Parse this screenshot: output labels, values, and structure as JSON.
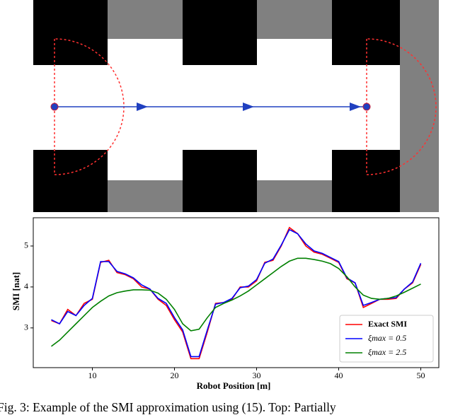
{
  "chart_data": {
    "type": "line",
    "xlabel": "Robot Position [m]",
    "ylabel": "SMI [nat]",
    "x": [
      5,
      6,
      7,
      8,
      9,
      10,
      11,
      12,
      13,
      14,
      15,
      16,
      17,
      18,
      19,
      20,
      21,
      22,
      23,
      24,
      25,
      26,
      27,
      28,
      29,
      30,
      31,
      32,
      33,
      34,
      35,
      36,
      37,
      38,
      39,
      40,
      41,
      42,
      43,
      44,
      45,
      46,
      47,
      48,
      49,
      50
    ],
    "series": [
      {
        "name": "Exact SMI",
        "color": "#ff0000",
        "values": [
          3.18,
          3.1,
          3.45,
          3.3,
          3.6,
          3.7,
          4.6,
          4.65,
          4.35,
          4.3,
          4.2,
          4.0,
          3.95,
          3.7,
          3.55,
          3.2,
          2.9,
          2.25,
          2.25,
          2.9,
          3.6,
          3.62,
          3.7,
          4.0,
          4.0,
          4.15,
          4.6,
          4.65,
          5.0,
          5.45,
          5.3,
          5.0,
          4.85,
          4.8,
          4.7,
          4.6,
          4.2,
          4.1,
          3.5,
          3.6,
          3.7,
          3.7,
          3.72,
          3.95,
          4.1,
          4.55
        ]
      },
      {
        "name": "ξmax = 0.5",
        "color": "#0000ff",
        "values": [
          3.2,
          3.1,
          3.4,
          3.3,
          3.55,
          3.72,
          4.62,
          4.62,
          4.38,
          4.32,
          4.22,
          4.05,
          3.95,
          3.72,
          3.6,
          3.25,
          2.95,
          2.3,
          2.3,
          2.95,
          3.58,
          3.62,
          3.72,
          3.98,
          4.02,
          4.18,
          4.58,
          4.68,
          5.02,
          5.4,
          5.3,
          5.05,
          4.88,
          4.82,
          4.72,
          4.62,
          4.22,
          4.1,
          3.55,
          3.62,
          3.7,
          3.72,
          3.74,
          3.95,
          4.12,
          4.58
        ]
      },
      {
        "name": "ξmax = 2.5",
        "color": "#008000",
        "values": [
          2.55,
          2.7,
          2.9,
          3.1,
          3.3,
          3.5,
          3.65,
          3.78,
          3.86,
          3.9,
          3.93,
          3.93,
          3.92,
          3.85,
          3.7,
          3.45,
          3.1,
          2.93,
          2.97,
          3.25,
          3.5,
          3.6,
          3.68,
          3.78,
          3.9,
          4.05,
          4.2,
          4.35,
          4.5,
          4.63,
          4.7,
          4.7,
          4.67,
          4.63,
          4.57,
          4.45,
          4.25,
          4.0,
          3.8,
          3.72,
          3.7,
          3.72,
          3.78,
          3.87,
          3.97,
          4.07
        ]
      }
    ],
    "xlim": [
      2.8,
      52.2
    ],
    "ylim": [
      2.03,
      5.69
    ],
    "xticks": [
      10,
      20,
      30,
      40,
      50
    ],
    "yticks": [
      3,
      4,
      5
    ],
    "legend": "lower right"
  },
  "caption": "Fig. 3: Example of the SMI approximation using (15). Top: Partially"
}
